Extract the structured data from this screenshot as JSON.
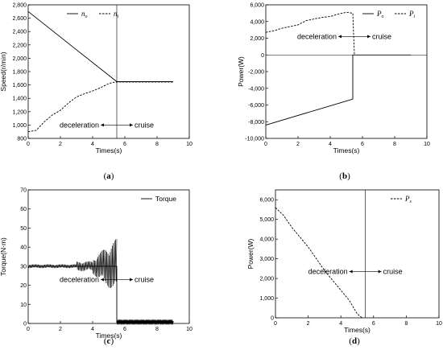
{
  "chart_data": [
    {
      "type": "line",
      "caption": "a",
      "xlabel": "Times(s)",
      "ylabel": "Speed(r/min)",
      "xlim": [
        0,
        10
      ],
      "ylim": [
        800,
        2800
      ],
      "xticks": [
        0,
        2,
        4,
        6,
        8,
        10
      ],
      "yticks": [
        800,
        1000,
        1200,
        1400,
        1600,
        1800,
        2000,
        2200,
        2400,
        2600,
        2800
      ],
      "ytick_labels": [
        "800",
        "1,000",
        "1,200",
        "1,400",
        "1,600",
        "1,800",
        "2,000",
        "2,200",
        "2,400",
        "2,600",
        "2,800"
      ],
      "legend": {
        "position": "top",
        "entries": [
          {
            "base": "n",
            "sub": "o",
            "style": "solid"
          },
          {
            "base": "n",
            "sub": "i",
            "style": "dashed"
          }
        ]
      },
      "annotations": {
        "left": "deceleration",
        "right": "cruise",
        "x": 5.5,
        "y": 1000
      },
      "vline_x": 5.5,
      "series": [
        {
          "style": "solid",
          "x": [
            0,
            5.5,
            9
          ],
          "y": [
            2700,
            1650,
            1650
          ]
        },
        {
          "style": "dashed",
          "x": [
            0,
            0.5,
            1,
            1.5,
            2,
            2.5,
            3,
            3.5,
            4,
            4.5,
            5,
            5.3,
            5.5,
            9
          ],
          "y": [
            900,
            920,
            1050,
            1150,
            1220,
            1330,
            1420,
            1470,
            1510,
            1560,
            1620,
            1640,
            1645,
            1645
          ]
        }
      ]
    },
    {
      "type": "line",
      "caption": "b",
      "xlabel": "Times(s)",
      "ylabel": "Power(W)",
      "xlim": [
        0,
        10
      ],
      "ylim": [
        -10000,
        6000
      ],
      "xticks": [
        0,
        2,
        4,
        6,
        8,
        10
      ],
      "yticks": [
        -10000,
        -8000,
        -6000,
        -4000,
        -2000,
        0,
        2000,
        4000,
        6000
      ],
      "ytick_labels": [
        "-10,000",
        "-8,000",
        "-6,000",
        "-4,000",
        "-2,000",
        "0",
        "2,000",
        "4,000",
        "6,000"
      ],
      "legend": {
        "position": "top-right",
        "entries": [
          {
            "base": "P",
            "sub": "o",
            "style": "solid"
          },
          {
            "base": "P",
            "sub": "i",
            "style": "dashed"
          }
        ]
      },
      "annotations": {
        "left": "deceleration",
        "right": "cruise",
        "x": 5.5,
        "y": 2200
      },
      "series": [
        {
          "style": "solid",
          "x": [
            0,
            5.4,
            5.4,
            9
          ],
          "y": [
            -8400,
            -5300,
            0,
            0
          ]
        },
        {
          "style": "dashed",
          "x": [
            0,
            0.5,
            1,
            1.5,
            2,
            2.5,
            3,
            3.5,
            4,
            4.5,
            5,
            5.4,
            5.5
          ],
          "y": [
            2700,
            2900,
            3200,
            3400,
            3600,
            4100,
            4300,
            4500,
            4600,
            4900,
            5100,
            5000,
            0
          ]
        }
      ]
    },
    {
      "type": "line",
      "caption": "c",
      "xlabel": "Times(s)",
      "ylabel": "Torque(N·m)",
      "xlim": [
        0,
        10
      ],
      "ylim": [
        0,
        70
      ],
      "xticks": [
        0,
        2,
        4,
        6,
        8,
        10
      ],
      "yticks": [
        0,
        10,
        20,
        30,
        40,
        50,
        60,
        70
      ],
      "legend": {
        "position": "top-right",
        "entries": [
          {
            "text": "Torque",
            "style": "solid"
          }
        ]
      },
      "annotations": {
        "left": "deceleration",
        "right": "cruise",
        "x": 5.5,
        "y": 23
      },
      "series": [
        {
          "name": "Torque",
          "style": "solid",
          "x": [
            0,
            4,
            5.5,
            5.5,
            9
          ],
          "y": [
            30,
            30,
            30,
            0.5,
            0.5
          ]
        }
      ]
    },
    {
      "type": "line",
      "caption": "d",
      "xlabel": "Times(s)",
      "ylabel": "Power(W)",
      "xlim": [
        0,
        10
      ],
      "ylim": [
        0,
        6500
      ],
      "xticks": [
        0,
        2,
        4,
        6,
        8,
        10
      ],
      "yticks": [
        0,
        1000,
        2000,
        3000,
        4000,
        5000,
        6000
      ],
      "ytick_labels": [
        "0",
        "1,000",
        "2,000",
        "3,000",
        "4,000",
        "5,000",
        "6,000"
      ],
      "legend": {
        "position": "top-right",
        "entries": [
          {
            "base": "P",
            "sub": "s",
            "style": "dashed"
          }
        ]
      },
      "annotations": {
        "left": "deceleration",
        "right": "cruise",
        "x": 5.5,
        "y": 2350
      },
      "vline_x": 5.5,
      "series": [
        {
          "style": "dashed",
          "x": [
            0,
            0.5,
            1,
            1.5,
            2,
            2.5,
            3,
            3.5,
            4,
            4.5,
            5,
            5.3
          ],
          "y": [
            5600,
            5200,
            4600,
            4100,
            3600,
            3000,
            2400,
            1900,
            1400,
            900,
            200,
            0
          ]
        }
      ]
    }
  ]
}
